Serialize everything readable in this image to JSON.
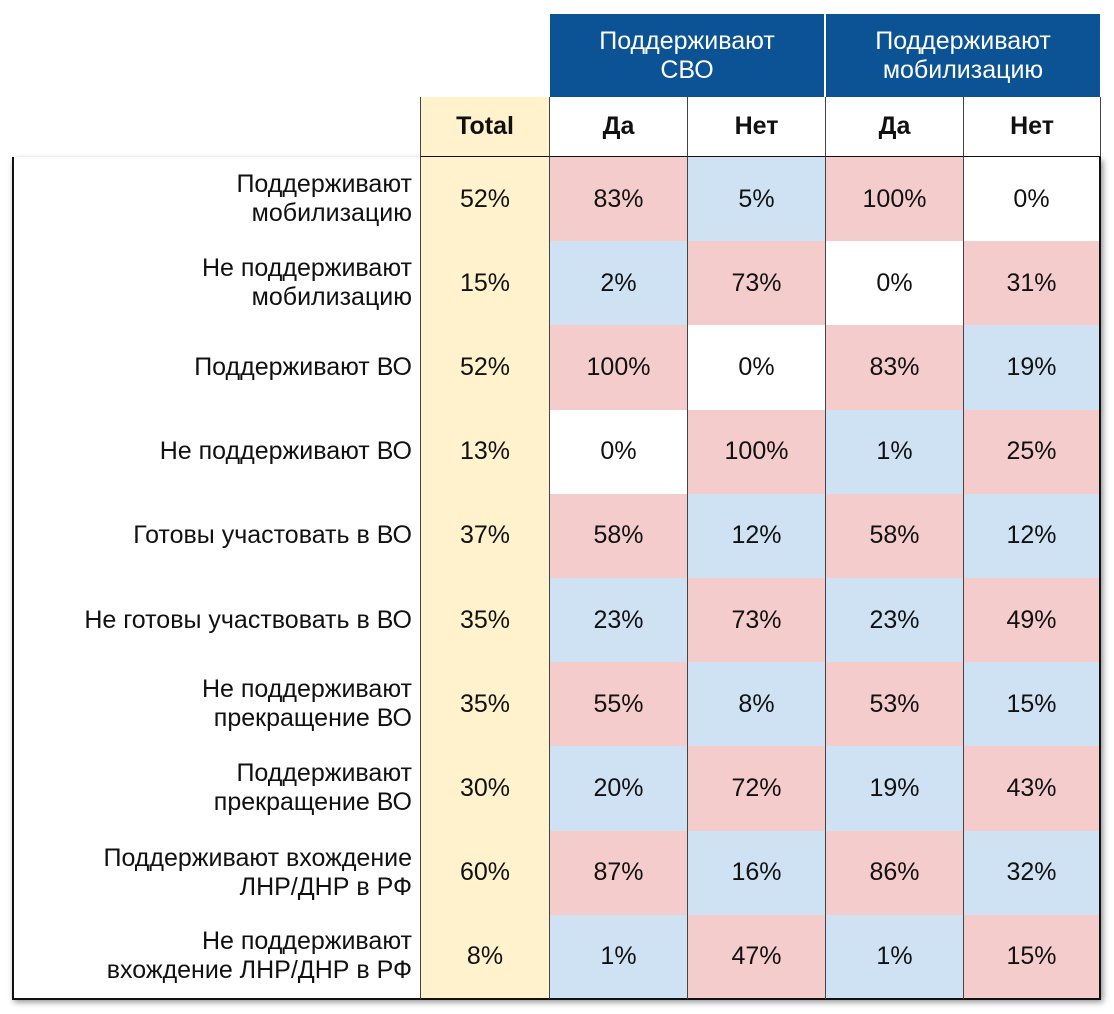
{
  "table": {
    "group_headers": [
      [
        "Поддерживают",
        "СВО"
      ],
      [
        "Поддерживают",
        "мобилизацию"
      ]
    ],
    "group_color": "#0b5394",
    "total_color": "#fff2cc",
    "columns": [
      "Total",
      "Да",
      "Нет",
      "Да",
      "Нет"
    ],
    "rows": [
      {
        "label": [
          "Поддерживают",
          "мобилизацию"
        ],
        "total": "52%",
        "values": [
          "83%",
          "5%",
          "100%",
          "0%"
        ],
        "colors": [
          "#f4cccc",
          "#cfe2f3",
          "#f4cccc",
          "#ffffff"
        ]
      },
      {
        "label": [
          "Не поддерживают",
          "мобилизацию"
        ],
        "total": "15%",
        "values": [
          "2%",
          "73%",
          "0%",
          "31%"
        ],
        "colors": [
          "#cfe2f3",
          "#f4cccc",
          "#ffffff",
          "#f4cccc"
        ]
      },
      {
        "label": [
          "Поддерживают ВО"
        ],
        "total": "52%",
        "values": [
          "100%",
          "0%",
          "83%",
          "19%"
        ],
        "colors": [
          "#f4cccc",
          "#ffffff",
          "#f4cccc",
          "#cfe2f3"
        ]
      },
      {
        "label": [
          "Не поддерживают ВО"
        ],
        "total": "13%",
        "values": [
          "0%",
          "100%",
          "1%",
          "25%"
        ],
        "colors": [
          "#ffffff",
          "#f4cccc",
          "#cfe2f3",
          "#f4cccc"
        ]
      },
      {
        "label": [
          "Готовы участовать в ВО"
        ],
        "total": "37%",
        "values": [
          "58%",
          "12%",
          "58%",
          "12%"
        ],
        "colors": [
          "#f4cccc",
          "#cfe2f3",
          "#f4cccc",
          "#cfe2f3"
        ]
      },
      {
        "label": [
          "Не готовы участвовать в ВО"
        ],
        "total": "35%",
        "values": [
          "23%",
          "73%",
          "23%",
          "49%"
        ],
        "colors": [
          "#cfe2f3",
          "#f4cccc",
          "#cfe2f3",
          "#f4cccc"
        ]
      },
      {
        "label": [
          "Не поддерживают",
          "прекращение ВО"
        ],
        "total": "35%",
        "values": [
          "55%",
          "8%",
          "53%",
          "15%"
        ],
        "colors": [
          "#f4cccc",
          "#cfe2f3",
          "#f4cccc",
          "#cfe2f3"
        ]
      },
      {
        "label": [
          "Поддерживают",
          "прекращение ВО"
        ],
        "total": "30%",
        "values": [
          "20%",
          "72%",
          "19%",
          "43%"
        ],
        "colors": [
          "#cfe2f3",
          "#f4cccc",
          "#cfe2f3",
          "#f4cccc"
        ]
      },
      {
        "label": [
          "Поддерживают вхождение",
          "ЛНР/ДНР в РФ"
        ],
        "total": "60%",
        "values": [
          "87%",
          "16%",
          "86%",
          "32%"
        ],
        "colors": [
          "#f4cccc",
          "#cfe2f3",
          "#f4cccc",
          "#cfe2f3"
        ]
      },
      {
        "label": [
          "Не поддерживают",
          "вхождение ЛНР/ДНР в РФ"
        ],
        "total": "8%",
        "values": [
          "1%",
          "47%",
          "1%",
          "15%"
        ],
        "colors": [
          "#cfe2f3",
          "#f4cccc",
          "#cfe2f3",
          "#f4cccc"
        ]
      }
    ]
  }
}
